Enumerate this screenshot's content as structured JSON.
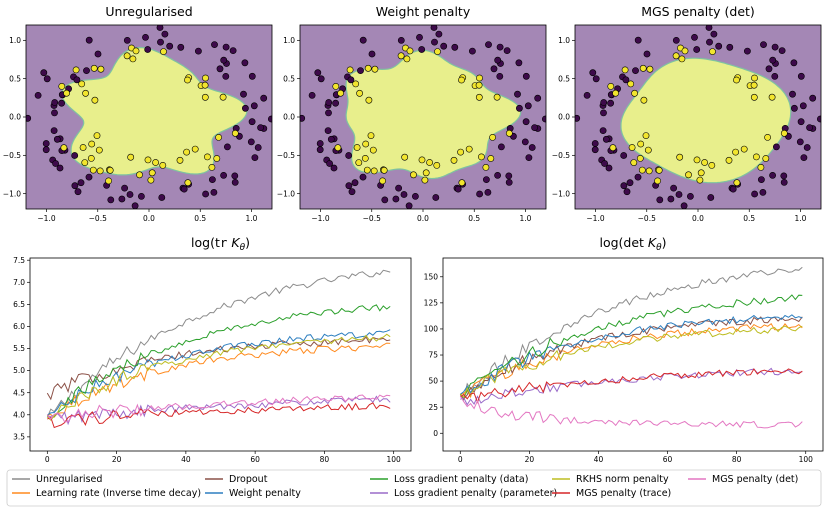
{
  "chart_data": [
    {
      "type": "scatter",
      "title": "Unregularised",
      "xlim": [
        -1.2,
        1.2
      ],
      "ylim": [
        -1.2,
        1.2
      ],
      "xticks": [
        "−1.0",
        "−0.5",
        "0.0",
        "0.5",
        "1.0"
      ],
      "yticks": [
        "1.0",
        "0.5",
        "0.0",
        "−0.5",
        "−1.0"
      ],
      "background_color": "#a487b5",
      "region_color": "#e8ef8c",
      "class_colors": [
        "#3d0a4a",
        "#f2e52e"
      ]
    },
    {
      "type": "scatter",
      "title": "Weight penalty",
      "xlim": [
        -1.2,
        1.2
      ],
      "ylim": [
        -1.2,
        1.2
      ],
      "xticks": [
        "−1.0",
        "−0.5",
        "0.0",
        "0.5",
        "1.0"
      ],
      "yticks": [
        "1.0",
        "0.5",
        "0.0",
        "−0.5",
        "−1.0"
      ],
      "background_color": "#a487b5",
      "region_color": "#e8ef8c",
      "class_colors": [
        "#3d0a4a",
        "#f2e52e"
      ]
    },
    {
      "type": "scatter",
      "title": "MGS penalty (det)",
      "xlim": [
        -1.2,
        1.2
      ],
      "ylim": [
        -1.2,
        1.2
      ],
      "xticks": [
        "−1.0",
        "−0.5",
        "0.0",
        "0.5",
        "1.0"
      ],
      "yticks": [
        "1.0",
        "0.5",
        "0.0",
        "−0.5",
        "−1.0"
      ],
      "background_color": "#a487b5",
      "region_color": "#e8ef8c",
      "class_colors": [
        "#3d0a4a",
        "#f2e52e"
      ]
    },
    {
      "type": "line",
      "title": "log(tr K_θ)",
      "xlim": [
        -5,
        105
      ],
      "ylim": [
        3.18,
        7.55
      ],
      "xticks": [
        0,
        20,
        40,
        60,
        80,
        100
      ],
      "yticks": [
        3.5,
        4.0,
        4.5,
        5.0,
        5.5,
        6.0,
        6.5,
        7.0,
        7.5
      ],
      "series": [
        {
          "name": "Unregularised",
          "color": "#8c8c8c",
          "start": 3.9,
          "end": 7.25,
          "rate": 0.022
        },
        {
          "name": "Learning rate (Inverse time decay)",
          "color": "#ff8a1e",
          "start": 3.95,
          "end": 5.55,
          "rate": 0.03
        },
        {
          "name": "Dropout",
          "color": "#8c5248",
          "start": 4.45,
          "end": 5.7,
          "rate": 0.03
        },
        {
          "name": "Weight penalty",
          "color": "#2d7fc0",
          "start": 3.95,
          "end": 5.85,
          "rate": 0.03
        },
        {
          "name": "Loss gradient penalty (data)",
          "color": "#2ca02c",
          "start": 3.95,
          "end": 6.45,
          "rate": 0.025
        },
        {
          "name": "Loss gradient penalty (parameter)",
          "color": "#9a6bc9",
          "start": 3.9,
          "end": 4.35,
          "rate": 0.012
        },
        {
          "name": "RKHS norm penalty",
          "color": "#bdbd22",
          "start": 3.9,
          "end": 5.75,
          "rate": 0.03
        },
        {
          "name": "MGS penalty (trace)",
          "color": "#d62728",
          "start": 3.85,
          "end": 4.2,
          "rate": 0.012
        },
        {
          "name": "MGS penalty (det)",
          "color": "#e377c2",
          "start": 3.95,
          "end": 4.4,
          "rate": 0.012
        }
      ]
    },
    {
      "type": "line",
      "title": "log(det K_θ)",
      "xlim": [
        -5,
        105
      ],
      "ylim": [
        -17,
        168
      ],
      "xticks": [
        0,
        20,
        40,
        60,
        80,
        100
      ],
      "yticks": [
        0,
        25,
        50,
        75,
        100,
        125,
        150
      ],
      "series": [
        {
          "name": "Unregularised",
          "color": "#8c8c8c",
          "start": 35,
          "end": 158,
          "rate": 0.022
        },
        {
          "name": "Learning rate (Inverse time decay)",
          "color": "#ff8a1e",
          "start": 35,
          "end": 103,
          "rate": 0.03
        },
        {
          "name": "Dropout",
          "color": "#8c5248",
          "start": 35,
          "end": 110,
          "rate": 0.03
        },
        {
          "name": "Weight penalty",
          "color": "#2d7fc0",
          "start": 35,
          "end": 112,
          "rate": 0.03
        },
        {
          "name": "Loss gradient penalty (data)",
          "color": "#2ca02c",
          "start": 35,
          "end": 130,
          "rate": 0.025
        },
        {
          "name": "Loss gradient penalty (parameter)",
          "color": "#9a6bc9",
          "start": 30,
          "end": 60,
          "rate": 0.02
        },
        {
          "name": "RKHS norm penalty",
          "color": "#bdbd22",
          "start": 35,
          "end": 100,
          "rate": 0.03
        },
        {
          "name": "MGS penalty (trace)",
          "color": "#d62728",
          "start": 32,
          "end": 60,
          "rate": 0.02
        },
        {
          "name": "MGS penalty (det)",
          "color": "#e377c2",
          "start": 33,
          "end": 8,
          "rate": 0.05
        }
      ]
    }
  ],
  "legend": [
    {
      "label": "Unregularised",
      "color": "#8c8c8c"
    },
    {
      "label": "Learning rate (Inverse time decay)",
      "color": "#ff8a1e"
    },
    {
      "label": "Dropout",
      "color": "#8c5248"
    },
    {
      "label": "Weight penalty",
      "color": "#2d7fc0"
    },
    {
      "label": "Loss gradient penalty (data)",
      "color": "#2ca02c"
    },
    {
      "label": "Loss gradient penalty (parameter)",
      "color": "#9a6bc9"
    },
    {
      "label": "RKHS norm penalty",
      "color": "#bdbd22"
    },
    {
      "label": "MGS penalty (trace)",
      "color": "#d62728"
    },
    {
      "label": "MGS penalty (det)",
      "color": "#e377c2"
    }
  ]
}
